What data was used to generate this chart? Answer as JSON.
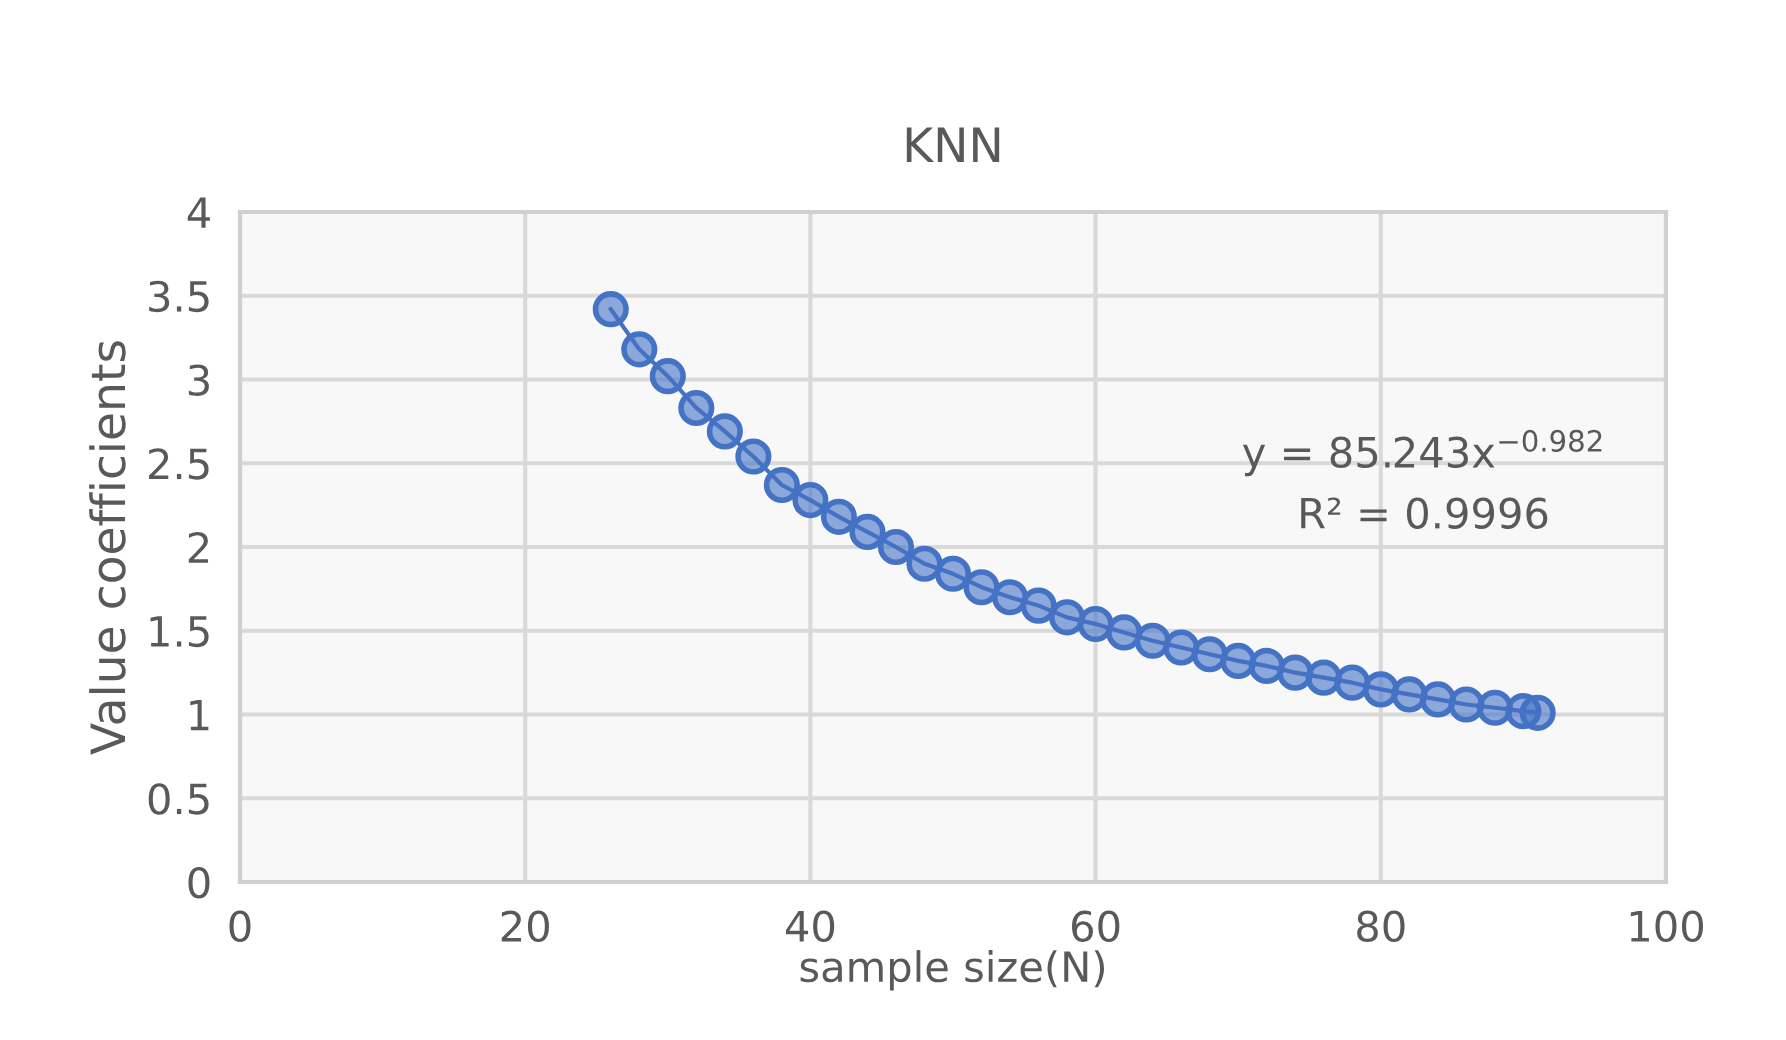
{
  "chart_data": {
    "type": "line",
    "title": "KNN",
    "xlabel": "sample size(N)",
    "ylabel": "Value coefficients",
    "xlim": [
      0,
      100
    ],
    "xticks": [
      0,
      20,
      40,
      60,
      80,
      100
    ],
    "ylim": [
      0,
      4
    ],
    "yticks": [
      0,
      0.5,
      1,
      1.5,
      2,
      2.5,
      3,
      3.5,
      4
    ],
    "grid": true,
    "marker": "circle",
    "line_style": "solid",
    "series": [
      {
        "color": "#4472c4",
        "x": [
          26,
          28,
          30,
          32,
          34,
          36,
          38,
          40,
          42,
          44,
          46,
          48,
          50,
          52,
          54,
          56,
          58,
          60,
          62,
          64,
          66,
          68,
          70,
          72,
          74,
          76,
          78,
          80,
          82,
          84,
          86,
          88,
          90,
          91
        ],
        "values": [
          3.42,
          3.18,
          3.02,
          2.83,
          2.69,
          2.54,
          2.37,
          2.28,
          2.18,
          2.09,
          2.0,
          1.9,
          1.84,
          1.76,
          1.7,
          1.65,
          1.58,
          1.54,
          1.49,
          1.44,
          1.4,
          1.36,
          1.32,
          1.29,
          1.25,
          1.22,
          1.19,
          1.15,
          1.12,
          1.09,
          1.06,
          1.04,
          1.02,
          1.01
        ]
      }
    ],
    "annotations": [
      "y = 85.243x$^{−0.982}$",
      "R² = 0.9996"
    ]
  }
}
